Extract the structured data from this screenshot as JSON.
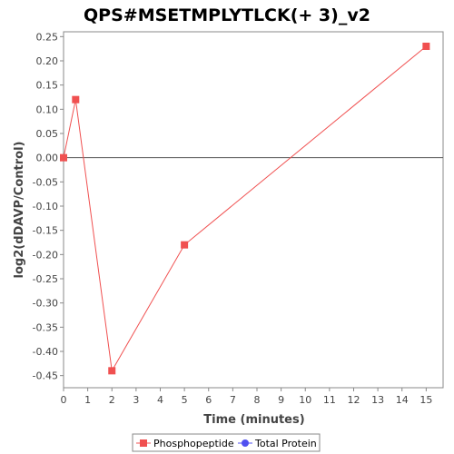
{
  "chart_data": {
    "type": "line",
    "title": "QPS#MSETMPLYTLCK(+ 3)_v2",
    "xlabel": "Time (minutes)",
    "ylabel": "log2(dDAVP/Control)",
    "xlim": [
      0,
      15.7
    ],
    "ylim": [
      -0.475,
      0.26
    ],
    "xticks": [
      0,
      1,
      2,
      3,
      4,
      5,
      6,
      7,
      8,
      9,
      10,
      11,
      12,
      13,
      14,
      15
    ],
    "yticks": [
      0.25,
      0.2,
      0.15,
      0.1,
      0.05,
      0.0,
      -0.05,
      -0.1,
      -0.15,
      -0.2,
      -0.25,
      -0.3,
      -0.35,
      -0.4,
      -0.45
    ],
    "ytick_labels": [
      "0.25",
      "0.20",
      "0.15",
      "0.10",
      "0.05",
      "0.00",
      "-0.05",
      "-0.10",
      "-0.15",
      "-0.20",
      "-0.25",
      "-0.30",
      "-0.35",
      "-0.40",
      "-0.45"
    ],
    "zero_line": true,
    "grid": false,
    "legend_position": "bottom-center",
    "series": [
      {
        "name": "Phosphopeptide",
        "color": "#f05050",
        "marker": "square",
        "x": [
          0,
          0.5,
          2,
          5,
          15
        ],
        "y": [
          0.0,
          0.12,
          -0.44,
          -0.18,
          0.23
        ]
      },
      {
        "name": "Total Protein",
        "color": "#5050f0",
        "marker": "circle",
        "x": [],
        "y": []
      }
    ]
  }
}
